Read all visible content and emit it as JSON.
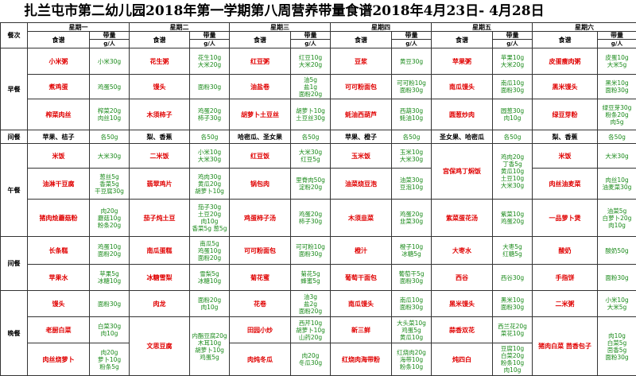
{
  "title": "扎兰屯市第二幼儿园2018年第一学期第八周营养带量食谱2018年4月23日- 4月28日",
  "header": {
    "meal_col": "餐次",
    "days": [
      "星期一",
      "星期二",
      "星期三",
      "星期四",
      "星期五",
      "星期六"
    ],
    "food_label": "食谱",
    "amount_label": "带量",
    "unit_label": "g/人"
  },
  "meals": {
    "breakfast": "早餐",
    "snack1": "间餐",
    "lunch": "午餐",
    "snack2": "间餐",
    "dinner": "晚餐"
  },
  "breakfast": [
    [
      {
        "dish": "小米粥",
        "amt": [
          "小米30g"
        ]
      },
      {
        "dish": "煮鸡蛋",
        "amt": [
          "鸡蛋50g"
        ]
      },
      {
        "dish": "榨菜肉丝",
        "amt": [
          "榨菜20g",
          "肉丝10g"
        ]
      }
    ],
    [
      {
        "dish": "花生粥",
        "amt": [
          "花生10g",
          "大米20g"
        ]
      },
      {
        "dish": "馒头",
        "amt": [
          "面粉30g"
        ]
      },
      {
        "dish": "木须柿子",
        "amt": [
          "鸡蛋20g",
          "柿子30g"
        ]
      }
    ],
    [
      {
        "dish": "红豆粥",
        "amt": [
          "红豆10g",
          "大米20g"
        ]
      },
      {
        "dish": "油盐卷",
        "amt": [
          "油5g",
          "盐1g",
          "面粉20g"
        ]
      },
      {
        "dish": "胡萝卜土豆丝",
        "amt": [
          "胡萝卜10g",
          "土豆丝30g"
        ]
      }
    ],
    [
      {
        "dish": "豆浆",
        "amt": [
          "黄豆30g"
        ]
      },
      {
        "dish": "可可粉面包",
        "amt": [
          "可可粉10g",
          "面粉30g"
        ]
      },
      {
        "dish": "蚝油西葫芦",
        "amt": [
          "西葫30g",
          "蚝油10g"
        ]
      }
    ],
    [
      {
        "dish": "苹果粥",
        "amt": [
          "苹果10g",
          "大米20g"
        ]
      },
      {
        "dish": "南瓜馒头",
        "amt": [
          "南瓜10g",
          "面粉30g"
        ]
      },
      {
        "dish": "圆葱炒肉",
        "amt": [
          "圆葱30g",
          "肉10g"
        ]
      }
    ],
    [
      {
        "dish": "皮蛋瘦肉粥",
        "amt": [
          "皮蛋10g",
          "大米5g"
        ]
      },
      {
        "dish": "黑米馒头",
        "amt": [
          "黑米10g",
          "面粉30g"
        ]
      },
      {
        "dish": "绿豆芽粉",
        "amt": [
          "绿豆芽30g",
          "粉条20g",
          "肉5g"
        ]
      }
    ]
  ],
  "snack1": [
    {
      "dish": "苹果、桔子",
      "amt": [
        "各50g"
      ]
    },
    {
      "dish": "梨、香蕉",
      "amt": [
        "各50g"
      ]
    },
    {
      "dish": "哈密瓜、圣女果",
      "amt": [
        "各50g"
      ]
    },
    {
      "dish": "苹果、橙子",
      "amt": [
        "各50g"
      ]
    },
    {
      "dish": "圣女果、哈密瓜",
      "amt": [
        "各50g"
      ]
    },
    {
      "dish": "梨、香蕉",
      "amt": [
        "各50g"
      ]
    }
  ],
  "lunch": [
    [
      {
        "dish": "米饭",
        "amt": [
          "大米30g"
        ]
      },
      {
        "dish": "油淋干豆腐",
        "amt": [
          "葱丝5g",
          "香菜5g",
          "干豆腐30g"
        ]
      },
      {
        "dish": "猪肉烩蘑菇粉",
        "amt": [
          "肉20g",
          "蘑菇10g",
          "粉条20g"
        ]
      }
    ],
    [
      {
        "dish": "二米饭",
        "amt": [
          "小米10g",
          "大米30g"
        ]
      },
      {
        "dish": "翡翠鸡片",
        "amt": [
          "鸡肉30g",
          "黄瓜20g",
          "胡萝卜10g"
        ]
      },
      {
        "dish": "茄子炖土豆",
        "amt": [
          "茄子30g",
          "土豆20g",
          "肉10g",
          "香菜5g 葱5g"
        ]
      }
    ],
    [
      {
        "dish": "红豆饭",
        "amt": [
          "大米30g",
          "红豆5g"
        ]
      },
      {
        "dish": "锅包肉",
        "amt": [
          "里脊肉50g",
          "淀粉20g"
        ]
      },
      {
        "dish": "鸡蛋柿子汤",
        "amt": [
          "鸡蛋20g",
          "柿子30g"
        ]
      }
    ],
    [
      {
        "dish": "玉米饭",
        "amt": [
          "玉米10g",
          "大米30g"
        ]
      },
      {
        "dish": "油菜烧豆泡",
        "amt": [
          "油菜30g",
          "豆泡10g"
        ]
      },
      {
        "dish": "木须韭菜",
        "amt": [
          "鸡蛋20g",
          "韭菜30g"
        ]
      }
    ],
    [
      {
        "dish": "宫保鸡丁焖饭",
        "amt": [
          "鸡肉20g",
          "丁香5g",
          "黄瓜10g",
          "土豆10g",
          "大米30g"
        ]
      },
      {
        "dish": "紫菜蛋花汤",
        "amt": [
          "紫菜10g",
          "鸡蛋20g"
        ]
      }
    ],
    [
      {
        "dish": "米饭",
        "amt": [
          "大米30g"
        ]
      },
      {
        "dish": "肉丝油麦菜",
        "amt": [
          "肉丝10g",
          "油麦菜30g"
        ]
      },
      {
        "dish": "一品萝卜煲",
        "amt": [
          "油菜5g",
          "白萝卜20g",
          "肉10g"
        ]
      }
    ]
  ],
  "snack2": [
    [
      {
        "dish": "长条糕",
        "amt": [
          "鸡蛋10g",
          "面粉20g"
        ]
      },
      {
        "dish": "苹果水",
        "amt": [
          "苹果5g",
          "冰糖10g"
        ]
      }
    ],
    [
      {
        "dish": "南瓜蛋糕",
        "amt": [
          "南瓜5g",
          "鸡蛋10g",
          "面粉20g"
        ]
      },
      {
        "dish": "冰糖雪梨",
        "amt": [
          "雪梨5g",
          "冰糖10g"
        ]
      }
    ],
    [
      {
        "dish": "可可粉面包",
        "amt": [
          "可可粉10g",
          "面粉30g"
        ]
      },
      {
        "dish": "菊花蜜",
        "amt": [
          "菊花5g",
          "蜂蜜5g"
        ]
      }
    ],
    [
      {
        "dish": "橙汁",
        "amt": [
          "橙子10g",
          "冰糖5g"
        ]
      },
      {
        "dish": "葡萄干面包",
        "amt": [
          "葡萄干5g",
          "面粉30g"
        ]
      }
    ],
    [
      {
        "dish": "大枣水",
        "amt": [
          "大枣5g",
          "红糖5g"
        ]
      },
      {
        "dish": "西谷",
        "amt": [
          "西谷30g"
        ]
      }
    ],
    [
      {
        "dish": "酸奶",
        "amt": [
          "酸奶50g"
        ]
      },
      {
        "dish": "手指饼",
        "amt": [
          "面粉30g"
        ]
      }
    ]
  ],
  "dinner": [
    [
      {
        "dish": "馒头",
        "amt": [
          "面粉30g"
        ]
      },
      {
        "dish": "老厨白菜",
        "amt": [
          "白菜30g",
          "肉10g"
        ]
      },
      {
        "dish": "肉丝烧萝卜",
        "amt": [
          "肉20g",
          "萝卜10g",
          "粉条5g"
        ]
      }
    ],
    [
      {
        "dish": "肉龙",
        "amt": [
          "面粉20g",
          "肉10g"
        ]
      },
      {
        "dish": "文思豆腐",
        "amt": [
          "内酯豆腐20g",
          "木耳10g",
          "胡萝卜10g",
          "鸡蛋5g"
        ]
      }
    ],
    [
      {
        "dish": "花卷",
        "amt": [
          "油3g",
          "盐2g",
          "面粉20g"
        ]
      },
      {
        "dish": "田园小炒",
        "amt": [
          "西芹10g",
          "胡萝卜10g",
          "山药20g"
        ]
      },
      {
        "dish": "肉炖冬瓜",
        "amt": [
          "肉20g",
          "冬瓜30g"
        ]
      }
    ],
    [
      {
        "dish": "南瓜馒头",
        "amt": [
          "南瓜10g",
          "面粉30g"
        ]
      },
      {
        "dish": "新三鲜",
        "amt": [
          "大头菜10g",
          "鸡蛋5g",
          "黄瓜10g"
        ]
      },
      {
        "dish": "红烧肉海带粉",
        "amt": [
          "红烧肉20g",
          "海带10g",
          "粉条10g"
        ]
      }
    ],
    [
      {
        "dish": "黑米馒头",
        "amt": [
          "黑米10g",
          "面粉30g"
        ]
      },
      {
        "dish": "蒜香双花",
        "amt": [
          "西兰花20g",
          "菜花10g"
        ]
      },
      {
        "dish": "炖四白",
        "amt": [
          "豆腐10g",
          "白菜20g",
          "粉条10g",
          "肉10g"
        ]
      }
    ],
    [
      {
        "dish": "二米粥",
        "amt": [
          "小米10g",
          "大米5g"
        ]
      },
      {
        "dish": "猪肉白菜 茴香包子",
        "amt": [
          "肉10g",
          "白菜5g",
          "茴香5g",
          "面粉30g"
        ]
      }
    ]
  ]
}
